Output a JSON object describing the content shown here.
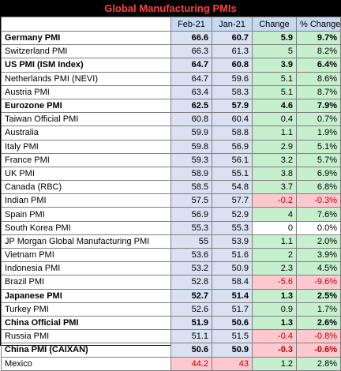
{
  "title": "Global Manufacturing PMIs",
  "columns": [
    "",
    "Feb-21",
    "Jan-21",
    "Change",
    "% Change"
  ],
  "rows": [
    {
      "name": "Germany PMI",
      "feb": "66.6",
      "jan": "60.7",
      "change": "5.9",
      "pct": "9.7%",
      "bold": true,
      "sign": "pos"
    },
    {
      "name": "Switzerland PMI",
      "feb": "66.3",
      "jan": "61.3",
      "change": "5",
      "pct": "8.2%",
      "bold": false,
      "sign": "pos"
    },
    {
      "name": "US PMI (ISM Index)",
      "feb": "64.7",
      "jan": "60.8",
      "change": "3.9",
      "pct": "6.4%",
      "bold": true,
      "sign": "pos"
    },
    {
      "name": "Netherlands PMI (NEVI)",
      "feb": "64.7",
      "jan": "59.6",
      "change": "5.1",
      "pct": "8.6%",
      "bold": false,
      "sign": "pos"
    },
    {
      "name": "Austria PMI",
      "feb": "63.4",
      "jan": "58.3",
      "change": "5.1",
      "pct": "8.7%",
      "bold": false,
      "sign": "pos"
    },
    {
      "name": "Eurozone PMI",
      "feb": "62.5",
      "jan": "57.9",
      "change": "4.6",
      "pct": "7.9%",
      "bold": true,
      "sign": "pos"
    },
    {
      "name": "Taiwan Official PMI",
      "feb": "60.8",
      "jan": "60.4",
      "change": "0.4",
      "pct": "0.7%",
      "bold": false,
      "sign": "pos"
    },
    {
      "name": "Australia",
      "feb": "59.9",
      "jan": "58.8",
      "change": "1.1",
      "pct": "1.9%",
      "bold": false,
      "sign": "pos"
    },
    {
      "name": "Italy PMI",
      "feb": "59.8",
      "jan": "56.9",
      "change": "2.9",
      "pct": "5.1%",
      "bold": false,
      "sign": "pos"
    },
    {
      "name": "France PMI",
      "feb": "59.3",
      "jan": "56.1",
      "change": "3.2",
      "pct": "5.7%",
      "bold": false,
      "sign": "pos"
    },
    {
      "name": "UK PMI",
      "feb": "58.9",
      "jan": "55.1",
      "change": "3.8",
      "pct": "6.9%",
      "bold": false,
      "sign": "pos"
    },
    {
      "name": "Canada (RBC)",
      "feb": "58.5",
      "jan": "54.8",
      "change": "3.7",
      "pct": "6.8%",
      "bold": false,
      "sign": "pos"
    },
    {
      "name": "Indian PMI",
      "feb": "57.5",
      "jan": "57.7",
      "change": "-0.2",
      "pct": "-0.3%",
      "bold": false,
      "sign": "neg"
    },
    {
      "name": "Spain PMI",
      "feb": "56.9",
      "jan": "52.9",
      "change": "4",
      "pct": "7.6%",
      "bold": false,
      "sign": "pos"
    },
    {
      "name": "South Korea PMI",
      "feb": "55.3",
      "jan": "55.3",
      "change": "0",
      "pct": "0.0%",
      "bold": false,
      "sign": "zero"
    },
    {
      "name": "JP Morgan Global Manufacturing PMI",
      "feb": "55",
      "jan": "53.9",
      "change": "1.1",
      "pct": "2.0%",
      "bold": false,
      "sign": "pos"
    },
    {
      "name": "Vietnam PMI",
      "feb": "53.6",
      "jan": "51.6",
      "change": "2",
      "pct": "3.9%",
      "bold": false,
      "sign": "pos"
    },
    {
      "name": "Indonesia PMI",
      "feb": "53.2",
      "jan": "50.9",
      "change": "2.3",
      "pct": "4.5%",
      "bold": false,
      "sign": "pos"
    },
    {
      "name": "Brazil PMI",
      "feb": "52.8",
      "jan": "58.4",
      "change": "-5.6",
      "pct": "-9.6%",
      "bold": false,
      "sign": "neg"
    },
    {
      "name": "Japanese PMI",
      "feb": "52.7",
      "jan": "51.4",
      "change": "1.3",
      "pct": "2.5%",
      "bold": true,
      "sign": "pos"
    },
    {
      "name": "Turkey PMI",
      "feb": "52.6",
      "jan": "51.7",
      "change": "0.9",
      "pct": "1.7%",
      "bold": false,
      "sign": "pos"
    },
    {
      "name": "China Official PMI",
      "feb": "51.9",
      "jan": "50.6",
      "change": "1.3",
      "pct": "2.6%",
      "bold": true,
      "sign": "pos"
    },
    {
      "name": "Russia PMI",
      "feb": "51.1",
      "jan": "51.5",
      "change": "-0.4",
      "pct": "-0.8%",
      "bold": false,
      "sign": "neg"
    },
    {
      "name": "China PMI (CAIXAN)",
      "feb": "50.6",
      "jan": "50.9",
      "change": "-0.3",
      "pct": "-0.6%",
      "bold": true,
      "sign": "neg"
    },
    {
      "name": "Mexico",
      "feb": "44.2",
      "jan": "43",
      "change": "1.2",
      "pct": "2.8%",
      "bold": false,
      "sign": "pos",
      "below50": true
    }
  ],
  "colors": {
    "title_bg": "#000000",
    "title_text": "#ff4040",
    "header_bg": "#c5d9f1",
    "value_bg": "#d9e1f2",
    "positive_bg": "#c6efce",
    "negative_bg": "#ffc7ce",
    "negative_text": "#c00000"
  }
}
